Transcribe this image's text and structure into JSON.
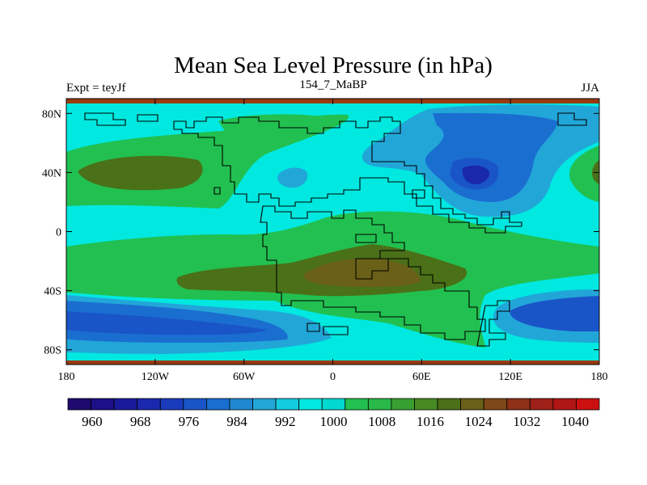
{
  "title": "Mean Sea Level Pressure (in hPa)",
  "subtitle_left": "Expt = teyJf",
  "subtitle_center": "154_7_MaBP",
  "subtitle_right": "JJA",
  "chart_data": {
    "type": "heatmap",
    "title": "Mean Sea Level Pressure (in hPa)",
    "units": "hPa",
    "projection": "cylindrical equidistant",
    "xlim": [
      -180,
      180
    ],
    "ylim": [
      -90,
      90
    ],
    "x_ticks": [
      {
        "value": -180,
        "label": "180"
      },
      {
        "value": -120,
        "label": "120W"
      },
      {
        "value": -60,
        "label": "60W"
      },
      {
        "value": 0,
        "label": "0"
      },
      {
        "value": 60,
        "label": "60E"
      },
      {
        "value": 120,
        "label": "120E"
      },
      {
        "value": 180,
        "label": "180"
      }
    ],
    "y_ticks": [
      {
        "value": 80,
        "label": "80N"
      },
      {
        "value": 40,
        "label": "40N"
      },
      {
        "value": 0,
        "label": "0"
      },
      {
        "value": -40,
        "label": "40S"
      },
      {
        "value": -80,
        "label": "80S"
      }
    ],
    "colorbar": {
      "levels": [
        956,
        960,
        964,
        968,
        972,
        976,
        980,
        984,
        988,
        992,
        996,
        1000,
        1004,
        1008,
        1012,
        1016,
        1020,
        1024,
        1028,
        1032,
        1036,
        1040,
        1044
      ],
      "labels": [
        "960",
        "968",
        "976",
        "984",
        "992",
        "1000",
        "1008",
        "1016",
        "1024",
        "1032",
        "1040"
      ],
      "label_levels": [
        960,
        968,
        976,
        984,
        992,
        1000,
        1008,
        1016,
        1024,
        1032,
        1040
      ],
      "colors": [
        "#1e0a6e",
        "#1c0f88",
        "#1a1a9c",
        "#1a28ad",
        "#1a3cbc",
        "#1a55c8",
        "#1a6ed0",
        "#2088d0",
        "#22a6d8",
        "#14cce0",
        "#00e8e0",
        "#00d8d0",
        "#22c050",
        "#2ab848",
        "#38a030",
        "#488a22",
        "#4a7018",
        "#6a6018",
        "#7e4818",
        "#8e3018",
        "#9e2018",
        "#b01616",
        "#cc1010"
      ]
    },
    "field_description": "high pressure cells (1012-1020) in subtropical bands; low pressure (972-990) over northern Asia and southern ocean"
  }
}
